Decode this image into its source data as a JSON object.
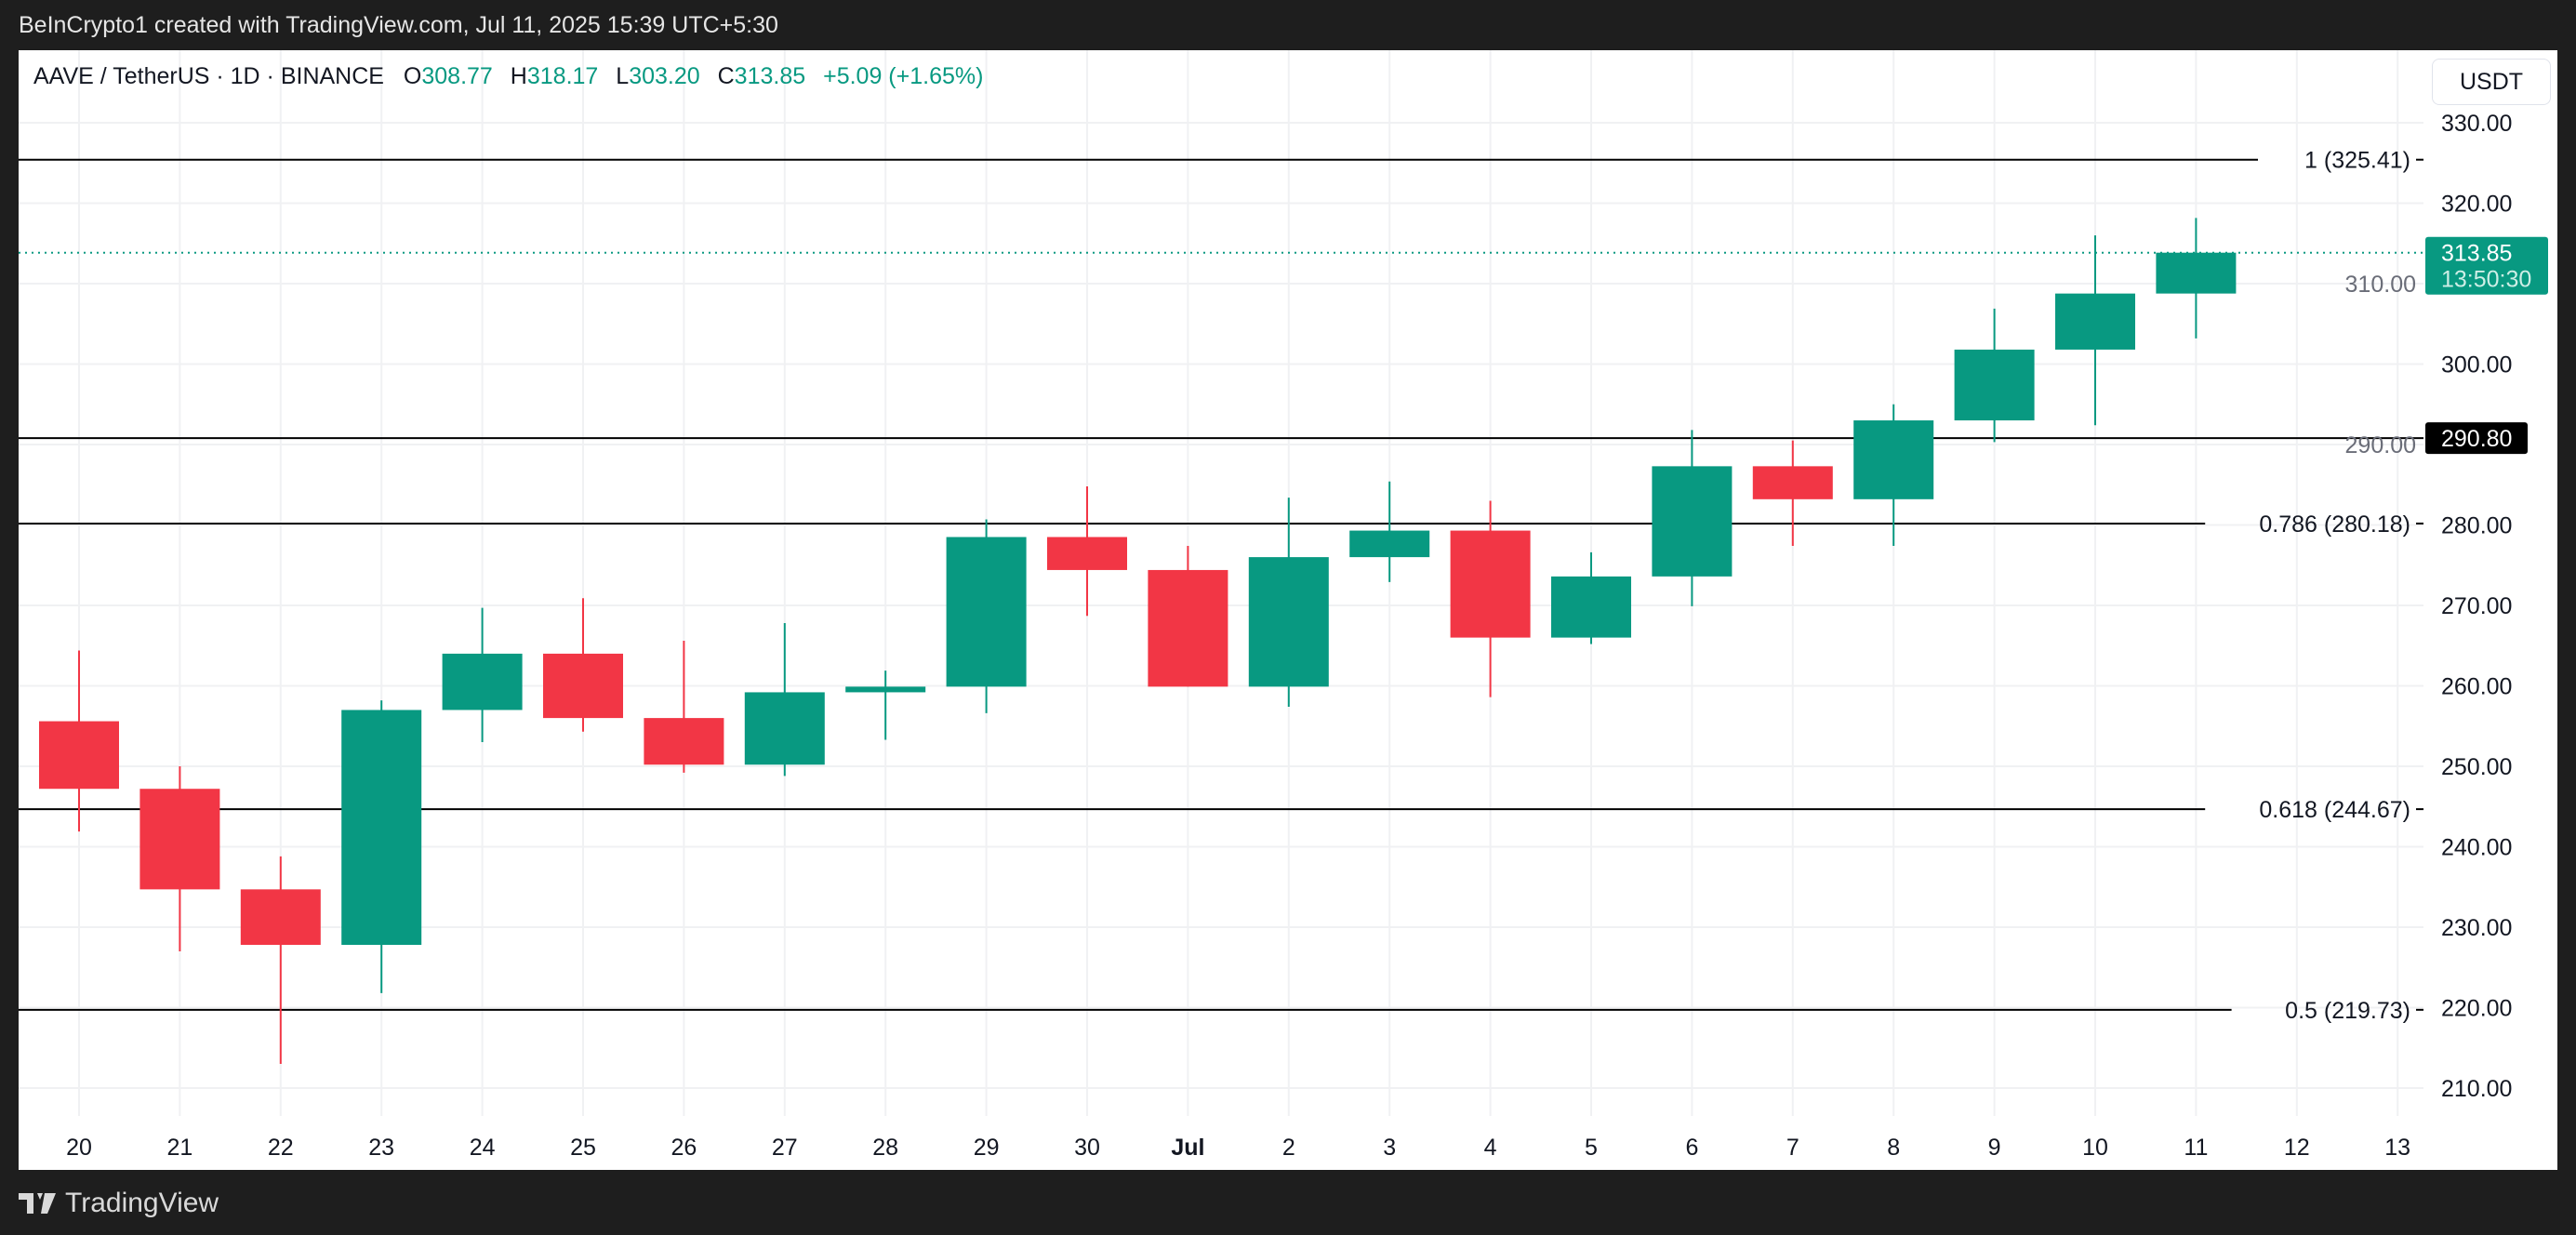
{
  "header": {
    "credit": "BeInCrypto1 created with TradingView.com, Jul 11, 2025 15:39 UTC+5:30"
  },
  "legend": {
    "symbol": "AAVE / TetherUS · 1D · BINANCE",
    "o_label": "O",
    "o": "308.77",
    "h_label": "H",
    "h": "318.17",
    "l_label": "L",
    "l": "303.20",
    "c_label": "C",
    "c": "313.85",
    "change": "+5.09 (+1.65%)"
  },
  "currency_button": "USDT",
  "footer": {
    "brand": "TradingView"
  },
  "colors": {
    "up": "#089981",
    "down": "#F23645",
    "fib_line": "#000000"
  },
  "chart_data": {
    "type": "candlestick",
    "ylim": [
      205,
      335
    ],
    "y_ticks": [
      "210.00",
      "220.00",
      "230.00",
      "240.00",
      "250.00",
      "260.00",
      "270.00",
      "280.00",
      "290.00",
      "300.00",
      "310.00",
      "320.00",
      "330.00"
    ],
    "x_ticks": [
      "20",
      "21",
      "22",
      "23",
      "24",
      "25",
      "26",
      "27",
      "28",
      "29",
      "30",
      "Jul",
      "2",
      "3",
      "4",
      "5",
      "6",
      "7",
      "8",
      "9",
      "10",
      "11",
      "12",
      "13"
    ],
    "grid": true,
    "candles": [
      {
        "date": "Jun 20",
        "o": 255.6,
        "h": 264.4,
        "l": 241.9,
        "c": 247.2
      },
      {
        "date": "Jun 21",
        "o": 247.2,
        "h": 250.0,
        "l": 227.0,
        "c": 234.7
      },
      {
        "date": "Jun 22",
        "o": 234.7,
        "h": 238.8,
        "l": 213.0,
        "c": 227.8
      },
      {
        "date": "Jun 23",
        "o": 227.8,
        "h": 258.2,
        "l": 221.8,
        "c": 257.0
      },
      {
        "date": "Jun 24",
        "o": 257.0,
        "h": 269.7,
        "l": 253.0,
        "c": 264.0
      },
      {
        "date": "Jun 25",
        "o": 264.0,
        "h": 270.9,
        "l": 254.3,
        "c": 256.0
      },
      {
        "date": "Jun 26",
        "o": 256.0,
        "h": 265.6,
        "l": 249.2,
        "c": 250.2
      },
      {
        "date": "Jun 27",
        "o": 250.2,
        "h": 267.8,
        "l": 248.8,
        "c": 259.2
      },
      {
        "date": "Jun 28",
        "o": 259.2,
        "h": 261.9,
        "l": 253.3,
        "c": 259.9
      },
      {
        "date": "Jun 29",
        "o": 259.9,
        "h": 280.7,
        "l": 256.6,
        "c": 278.5
      },
      {
        "date": "Jun 30",
        "o": 278.5,
        "h": 284.8,
        "l": 268.7,
        "c": 274.4
      },
      {
        "date": "Jul 1",
        "o": 274.4,
        "h": 277.4,
        "l": 259.9,
        "c": 259.9
      },
      {
        "date": "Jul 2",
        "o": 259.9,
        "h": 283.4,
        "l": 257.4,
        "c": 276.0
      },
      {
        "date": "Jul 3",
        "o": 276.0,
        "h": 285.4,
        "l": 272.9,
        "c": 279.3
      },
      {
        "date": "Jul 4",
        "o": 279.3,
        "h": 283.0,
        "l": 258.6,
        "c": 266.0
      },
      {
        "date": "Jul 5",
        "o": 266.0,
        "h": 276.6,
        "l": 265.2,
        "c": 273.6
      },
      {
        "date": "Jul 6",
        "o": 273.6,
        "h": 291.8,
        "l": 269.9,
        "c": 287.3
      },
      {
        "date": "Jul 7",
        "o": 287.3,
        "h": 290.5,
        "l": 277.4,
        "c": 283.2
      },
      {
        "date": "Jul 8",
        "o": 283.2,
        "h": 295.0,
        "l": 277.4,
        "c": 293.0
      },
      {
        "date": "Jul 9",
        "o": 293.0,
        "h": 306.9,
        "l": 290.3,
        "c": 301.8
      },
      {
        "date": "Jul 10",
        "o": 301.8,
        "h": 316.0,
        "l": 292.4,
        "c": 308.77
      },
      {
        "date": "Jul 11",
        "o": 308.77,
        "h": 318.17,
        "l": 303.2,
        "c": 313.85
      }
    ],
    "fib_levels": [
      {
        "label": "1 (325.41)",
        "value": 325.41
      },
      {
        "label": "0.786 (280.18)",
        "value": 280.18
      },
      {
        "label": "0.618 (244.67)",
        "value": 244.67
      },
      {
        "label": "0.5 (219.73)",
        "value": 219.73
      }
    ],
    "horizontal_line": {
      "value": 290.8,
      "label": "290.80"
    },
    "last_price": {
      "value": 313.85,
      "label": "313.85",
      "countdown": "13:50:30"
    }
  }
}
